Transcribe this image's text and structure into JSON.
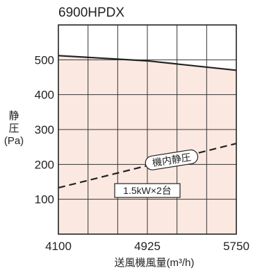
{
  "chart_data": {
    "type": "line",
    "title": "6900HPDX",
    "xlabel": "送風機風量(m³/h)",
    "ylabel": [
      "静",
      "圧",
      "(Pa)"
    ],
    "x_ticks": [
      4100,
      4925,
      5750
    ],
    "y_ticks": [
      100,
      200,
      300,
      400,
      500
    ],
    "xlim": [
      4100,
      5750
    ],
    "ylim": [
      0,
      600
    ],
    "grid": true,
    "series": [
      {
        "name": "",
        "style": "solid",
        "fill": "#fbe9e1",
        "x": [
          4100,
          4925,
          5750
        ],
        "y": [
          512,
          497,
          470
        ]
      },
      {
        "name": "機内静圧",
        "style": "dashed",
        "x": [
          4100,
          5750
        ],
        "y": [
          133,
          260
        ]
      }
    ],
    "annotations": [
      {
        "text": "機内静圧",
        "x": 5150,
        "y": 213,
        "boxed": "rounded"
      },
      {
        "text": "1.5kW×2台",
        "x": 4925,
        "y": 125,
        "boxed": "rect"
      }
    ],
    "colors": {
      "fill": "#fbe9e1",
      "line": "#222222",
      "grid": "#333333"
    }
  }
}
